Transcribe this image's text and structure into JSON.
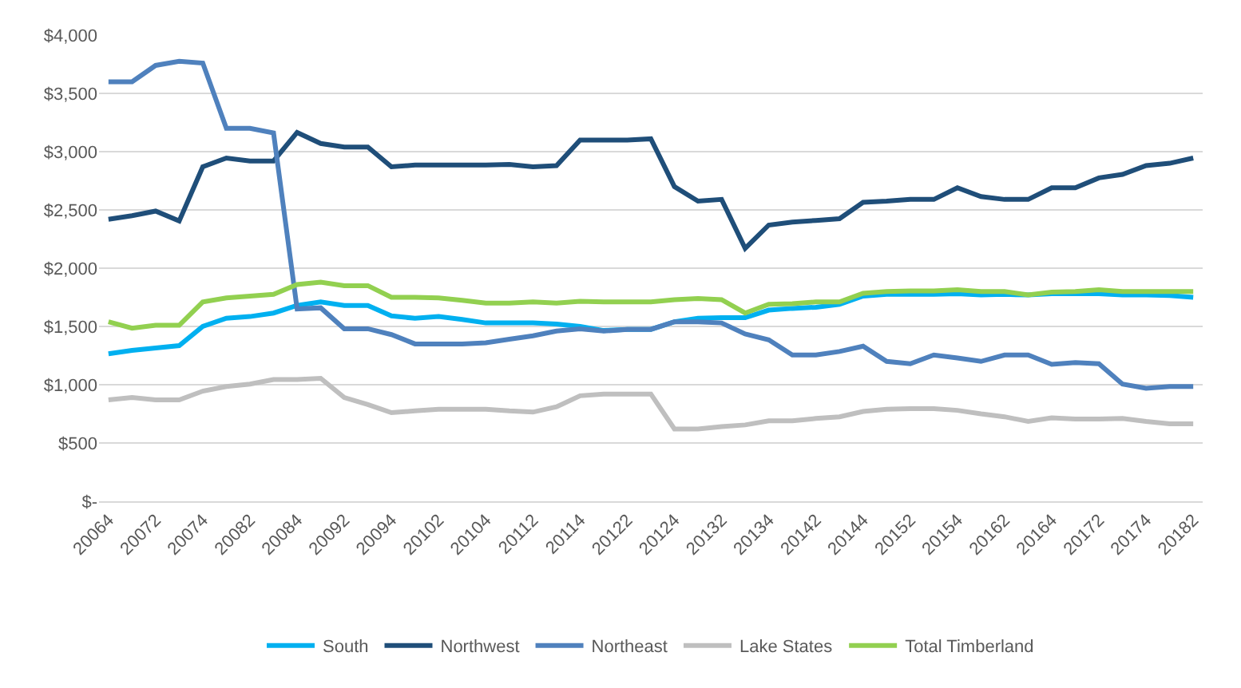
{
  "chart_data": {
    "type": "line",
    "categories": [
      "20064",
      null,
      "20072",
      null,
      "20074",
      null,
      "20082",
      null,
      "20084",
      null,
      "20092",
      null,
      "20094",
      null,
      "20102",
      null,
      "20104",
      null,
      "20112",
      null,
      "20114",
      null,
      "20122",
      null,
      "20124",
      null,
      "20132",
      null,
      "20134",
      null,
      "20142",
      null,
      "20144",
      null,
      "20152",
      null,
      "20154",
      null,
      "20162",
      null,
      "20164",
      null,
      "20172",
      null,
      "20174",
      null,
      "20182"
    ],
    "series": [
      {
        "name": "South",
        "color": "#00b0f0",
        "values": [
          1265,
          1295,
          1315,
          1335,
          1500,
          1570,
          1585,
          1615,
          1680,
          1710,
          1680,
          1680,
          1590,
          1570,
          1585,
          1560,
          1530,
          1530,
          1530,
          1520,
          1500,
          1465,
          1475,
          1475,
          1540,
          1570,
          1575,
          1575,
          1640,
          1655,
          1665,
          1690,
          1760,
          1775,
          1775,
          1775,
          1780,
          1770,
          1775,
          1770,
          1780,
          1780,
          1780,
          1770,
          1770,
          1765,
          1750
        ]
      },
      {
        "name": "Northwest",
        "color": "#1f4e79",
        "values": [
          2420,
          2450,
          2490,
          2405,
          2870,
          2945,
          2920,
          2920,
          3165,
          3070,
          3040,
          3040,
          2870,
          2885,
          2885,
          2885,
          2885,
          2890,
          2870,
          2880,
          3100,
          3100,
          3100,
          3110,
          2700,
          2575,
          2590,
          2170,
          2370,
          2395,
          2410,
          2425,
          2565,
          2575,
          2590,
          2590,
          2690,
          2615,
          2590,
          2590,
          2690,
          2690,
          2775,
          2805,
          2880,
          2900,
          2945
        ]
      },
      {
        "name": "Northeast",
        "color": "#4f81bd",
        "values": [
          3600,
          3600,
          3740,
          3775,
          3760,
          3200,
          3200,
          3160,
          1650,
          1660,
          1480,
          1480,
          1430,
          1350,
          1350,
          1350,
          1360,
          1390,
          1420,
          1460,
          1480,
          1460,
          1475,
          1475,
          1540,
          1540,
          1530,
          1435,
          1385,
          1255,
          1255,
          1285,
          1330,
          1200,
          1180,
          1255,
          1230,
          1200,
          1255,
          1255,
          1175,
          1190,
          1180,
          1005,
          970,
          985,
          985
        ]
      },
      {
        "name": "Lake States",
        "color": "#bfbfbf",
        "values": [
          870,
          890,
          870,
          870,
          945,
          985,
          1005,
          1045,
          1045,
          1055,
          890,
          830,
          760,
          775,
          790,
          790,
          790,
          775,
          765,
          810,
          905,
          920,
          920,
          920,
          620,
          620,
          640,
          655,
          690,
          690,
          710,
          725,
          770,
          790,
          795,
          795,
          780,
          750,
          725,
          685,
          715,
          705,
          705,
          710,
          685,
          665,
          665
        ]
      },
      {
        "name": "Total Timberland",
        "color": "#92d050",
        "values": [
          1540,
          1485,
          1510,
          1510,
          1710,
          1745,
          1760,
          1775,
          1860,
          1880,
          1850,
          1850,
          1750,
          1750,
          1745,
          1725,
          1700,
          1700,
          1710,
          1700,
          1715,
          1710,
          1710,
          1710,
          1730,
          1740,
          1730,
          1615,
          1690,
          1695,
          1710,
          1710,
          1785,
          1800,
          1805,
          1805,
          1815,
          1800,
          1800,
          1770,
          1795,
          1800,
          1815,
          1800,
          1800,
          1800,
          1800
        ]
      }
    ],
    "ylim": [
      0,
      4000
    ],
    "yticks": [
      {
        "value": 0,
        "label": "$-"
      },
      {
        "value": 500,
        "label": "$500"
      },
      {
        "value": 1000,
        "label": "$1,000"
      },
      {
        "value": 1500,
        "label": "$1,500"
      },
      {
        "value": 2000,
        "label": "$2,000"
      },
      {
        "value": 2500,
        "label": "$2,500"
      },
      {
        "value": 3000,
        "label": "$3,000"
      },
      {
        "value": 3500,
        "label": "$3,500"
      },
      {
        "value": 4000,
        "label": "$4,000"
      }
    ],
    "grid": "y",
    "legend": "bottom",
    "marker": "none",
    "line_style": "solid"
  }
}
